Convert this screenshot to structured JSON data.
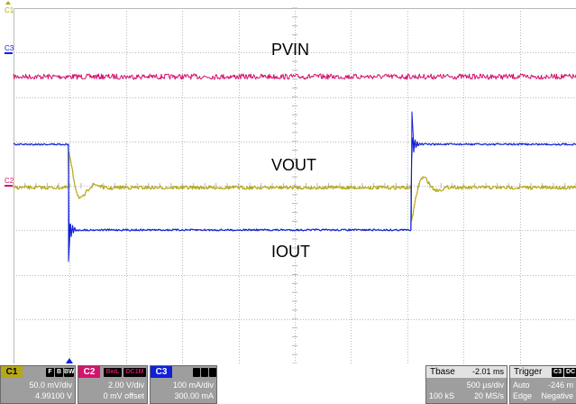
{
  "labels": {
    "pvin": "PVIN",
    "vout": "VOUT",
    "iout": "IOUT"
  },
  "markers": {
    "c1": "C1",
    "c2": "C2",
    "c3": "C3"
  },
  "colors": {
    "c1": "#b5a814",
    "c2": "#d4136d",
    "c3": "#1020d8",
    "grid": "#b8b8b8",
    "panel": "#9e9e9e"
  },
  "channels": {
    "c1": {
      "name": "C1",
      "tags": [
        "F",
        "B",
        "BW"
      ],
      "scale": "50.0 mV/div",
      "offset": "4.99100 V"
    },
    "c2": {
      "name": "C2",
      "tags": [
        "BwL",
        "DC1M"
      ],
      "scale": "2.00 V/div",
      "offset": "0 mV offset"
    },
    "c3": {
      "name": "C3",
      "scale": "100 mA/div",
      "offset": "300.00 mA"
    }
  },
  "timebase": {
    "title": "Tbase",
    "delay": "-2.01 ms",
    "scale": "500 µs/div",
    "samples": "100 kS",
    "rate": "20 MS/s"
  },
  "trigger": {
    "title": "Trigger",
    "channel": "C3",
    "coupling": "DC",
    "mode": "Auto",
    "level": "-246 m",
    "type": "Edge",
    "slope": "Negative"
  }
}
